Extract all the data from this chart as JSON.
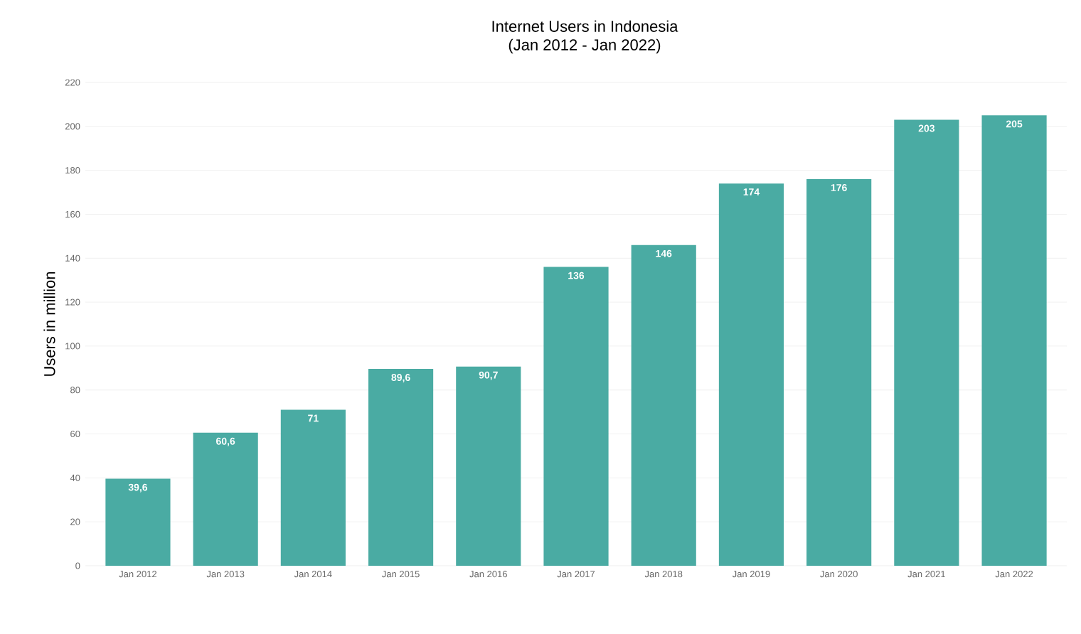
{
  "chart_data": {
    "type": "bar",
    "title": "Internet Users in Indonesia",
    "subtitle": "(Jan 2012 - Jan 2022)",
    "ylabel": "Users in million",
    "categories": [
      "Jan 2012",
      "Jan 2013",
      "Jan 2014",
      "Jan 2015",
      "Jan 2016",
      "Jan 2017",
      "Jan 2018",
      "Jan 2019",
      "Jan 2020",
      "Jan 2021",
      "Jan 2022"
    ],
    "values": [
      39.6,
      60.6,
      71,
      89.6,
      90.7,
      136,
      146,
      174,
      176,
      203,
      205
    ],
    "value_labels": [
      "39,6",
      "60,6",
      "71",
      "89,6",
      "90,7",
      "136",
      "146",
      "174",
      "176",
      "203",
      "205"
    ],
    "color": "#4aaba3",
    "ylim": [
      0,
      220
    ],
    "yticks": [
      0,
      20,
      40,
      60,
      80,
      100,
      120,
      140,
      160,
      180,
      200,
      220
    ],
    "grid": "y"
  }
}
